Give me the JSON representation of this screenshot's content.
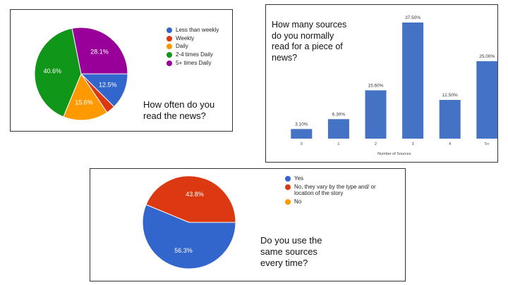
{
  "chart_data": [
    {
      "type": "pie",
      "question": "How often do you\nread the news?",
      "categories": [
        "Less than weekly",
        "Weekly",
        "Daily",
        "2-4 times Daily",
        "5+ times Daily"
      ],
      "values": [
        12.5,
        3.1,
        15.6,
        40.6,
        28.1
      ],
      "value_labels": [
        "12.5%",
        "",
        "15.6%",
        "40.6%",
        "28.1%"
      ],
      "colors": [
        "#3366cc",
        "#dc3912",
        "#ff9900",
        "#109618",
        "#990099"
      ],
      "legend": "right"
    },
    {
      "type": "bar",
      "question": "How many sources\ndo you normally\nread for a piece of\nnews?",
      "categories": [
        "0",
        "1",
        "2",
        "3",
        "4",
        "5+"
      ],
      "values": [
        3.1,
        6.3,
        15.6,
        37.5,
        12.5,
        25.0
      ],
      "value_labels": [
        "3.10%",
        "6.30%",
        "15.60%",
        "37.50%",
        "12.50%",
        "25.00%"
      ],
      "xlabel": "Number of Sources",
      "ylim": [
        0,
        37.5
      ],
      "color": "#4472c4"
    },
    {
      "type": "pie",
      "question": "Do you use the\nsame sources\nevery time?",
      "categories": [
        "Yes",
        "No, they vary by the type and/ or location of the story",
        "No"
      ],
      "values": [
        56.3,
        43.8,
        0
      ],
      "value_labels": [
        "56.3%",
        "43.8%",
        ""
      ],
      "colors": [
        "#3366cc",
        "#dc3912",
        "#ff9900"
      ],
      "legend": "right"
    }
  ]
}
